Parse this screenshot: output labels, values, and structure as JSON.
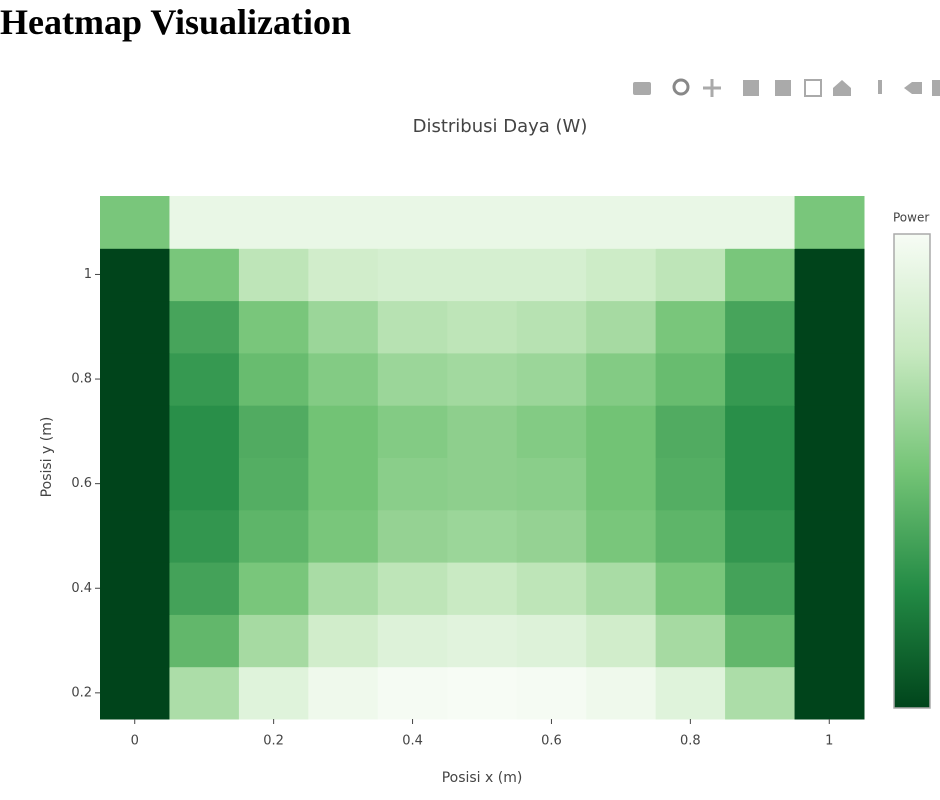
{
  "header": {
    "title": "Heatmap Visualization"
  },
  "chart_data": {
    "type": "heatmap",
    "title": "Distribusi Daya (W)",
    "x_label": "Posisi x (m)",
    "y_label": "Posisi y (m)",
    "colorbar_title": "Power",
    "x": [
      0,
      0.1,
      0.2,
      0.3,
      0.4,
      0.5,
      0.6,
      0.7,
      0.8,
      0.9,
      1
    ],
    "y": [
      0.2,
      0.3,
      0.4,
      0.5,
      0.6,
      0.7,
      0.8,
      0.9,
      1,
      1.1
    ],
    "z": [
      [
        0,
        6.5,
        8.5,
        9.3,
        9.6,
        9.7,
        9.6,
        9.3,
        8.5,
        6.5,
        0
      ],
      [
        0,
        4.3,
        6.3,
        7.8,
        8.4,
        8.6,
        8.4,
        7.8,
        6.3,
        4.3,
        0
      ],
      [
        0,
        3.4,
        5,
        6.4,
        7,
        7.4,
        7,
        6.4,
        5,
        3.4,
        0
      ],
      [
        0,
        2.9,
        4.2,
        5,
        5.8,
        6,
        5.8,
        5,
        4.2,
        2.9,
        0
      ],
      [
        0,
        2.6,
        3.9,
        4.8,
        5.5,
        5.6,
        5.5,
        4.8,
        3.9,
        2.6,
        0
      ],
      [
        0,
        2.6,
        3.8,
        4.8,
        5.3,
        5.6,
        5.3,
        4.8,
        3.8,
        2.6,
        0
      ],
      [
        0,
        3,
        4.5,
        5.3,
        6,
        6.2,
        6,
        5.3,
        4.5,
        3,
        0
      ],
      [
        0,
        3.5,
        5,
        6,
        6.8,
        7,
        6.8,
        6.3,
        5,
        3.5,
        0
      ],
      [
        0,
        5,
        7,
        7.8,
        8,
        8,
        8,
        7.6,
        7,
        5,
        0
      ],
      [
        5,
        9,
        9,
        9,
        9,
        9,
        9,
        9,
        9,
        9,
        5
      ]
    ],
    "colorscale": [
      "#00441b",
      "#238b45",
      "#74c476",
      "#c7e9c0",
      "#f7fcf5"
    ],
    "xlim": [
      -0.05,
      1.05
    ],
    "ylim": [
      0.15,
      1.15
    ],
    "xticks": [
      0,
      0.2,
      0.4,
      0.6,
      0.8,
      1
    ],
    "yticks": [
      0.2,
      0.4,
      0.6,
      0.8,
      1
    ]
  }
}
